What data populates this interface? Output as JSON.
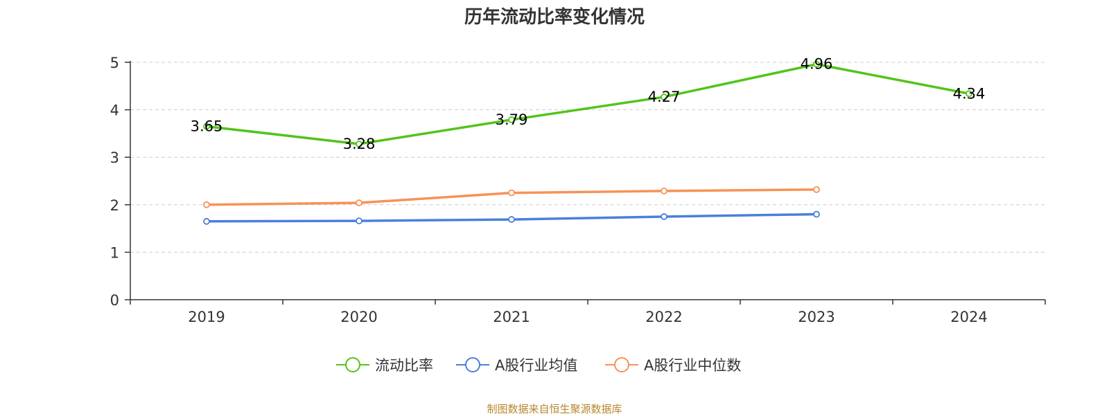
{
  "title": "历年流动比率变化情况",
  "source": "制图数据来自恒生聚源数据库",
  "colors": {
    "series": [
      "#52c41a",
      "#4a7fdc",
      "#f79256"
    ],
    "axis": "#333333",
    "grid": "#cccccc",
    "label": "#000000",
    "source": "#b8862d"
  },
  "chart_data": {
    "type": "line",
    "x": [
      "2019",
      "2020",
      "2021",
      "2022",
      "2023",
      "2024"
    ],
    "ylim": [
      0,
      5
    ],
    "yticks": [
      "0",
      "1",
      "2",
      "3",
      "4",
      "5"
    ],
    "grid": "horizontal dashed",
    "legend": "bottom-center",
    "series": [
      {
        "name": "流动比率",
        "values": [
          3.65,
          3.28,
          3.79,
          4.27,
          4.96,
          4.34
        ],
        "labels": [
          "3.65",
          "3.28",
          "3.79",
          "4.27",
          "4.96",
          "4.34"
        ]
      },
      {
        "name": "A股行业均值",
        "values": [
          1.65,
          1.66,
          1.69,
          1.75,
          1.8,
          null
        ]
      },
      {
        "name": "A股行业中位数",
        "values": [
          2.0,
          2.04,
          2.25,
          2.29,
          2.32,
          null
        ]
      }
    ]
  }
}
